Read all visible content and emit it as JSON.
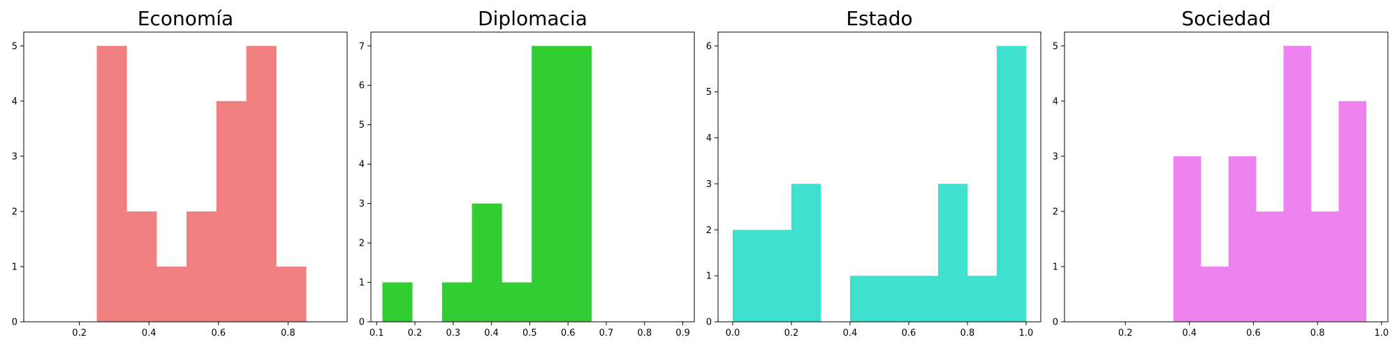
{
  "chart_data": [
    {
      "type": "bar",
      "title": "Economía",
      "color": "#F08080",
      "bins": [
        {
          "x0": 0.25,
          "x1": 0.336,
          "count": 5
        },
        {
          "x0": 0.336,
          "x1": 0.422,
          "count": 2
        },
        {
          "x0": 0.422,
          "x1": 0.508,
          "count": 1
        },
        {
          "x0": 0.508,
          "x1": 0.594,
          "count": 2
        },
        {
          "x0": 0.594,
          "x1": 0.68,
          "count": 4
        },
        {
          "x0": 0.68,
          "x1": 0.766,
          "count": 5
        },
        {
          "x0": 0.766,
          "x1": 0.852,
          "count": 1
        }
      ],
      "xlim": [
        0.04,
        0.97
      ],
      "ylim": [
        0,
        5.25
      ],
      "xticks": [
        0.2,
        0.4,
        0.6,
        0.8
      ],
      "xtick_labels": [
        "0.2",
        "0.4",
        "0.6",
        "0.8"
      ],
      "yticks": [
        0,
        1,
        2,
        3,
        4,
        5
      ],
      "ytick_labels": [
        "0",
        "1",
        "2",
        "3",
        "4",
        "5"
      ]
    },
    {
      "type": "bar",
      "title": "Diplomacia",
      "color": "#32CD32",
      "bins": [
        {
          "x0": 0.115,
          "x1": 0.193,
          "count": 1
        },
        {
          "x0": 0.193,
          "x1": 0.271,
          "count": 0
        },
        {
          "x0": 0.271,
          "x1": 0.349,
          "count": 1
        },
        {
          "x0": 0.349,
          "x1": 0.427,
          "count": 3
        },
        {
          "x0": 0.427,
          "x1": 0.505,
          "count": 1
        },
        {
          "x0": 0.505,
          "x1": 0.583,
          "count": 7
        },
        {
          "x0": 0.583,
          "x1": 0.661,
          "count": 7
        }
      ],
      "xlim": [
        0.085,
        0.93
      ],
      "ylim": [
        0,
        7.35
      ],
      "xticks": [
        0.1,
        0.2,
        0.3,
        0.4,
        0.5,
        0.6,
        0.7,
        0.8,
        0.9
      ],
      "xtick_labels": [
        "0.1",
        "0.2",
        "0.3",
        "0.4",
        "0.5",
        "0.6",
        "0.7",
        "0.8",
        "0.9"
      ],
      "yticks": [
        0,
        1,
        2,
        3,
        4,
        5,
        6,
        7
      ],
      "ytick_labels": [
        "0",
        "1",
        "2",
        "3",
        "4",
        "5",
        "6",
        "7"
      ]
    },
    {
      "type": "bar",
      "title": "Estado",
      "color": "#40E0D0",
      "bins": [
        {
          "x0": 0.0,
          "x1": 0.1,
          "count": 2
        },
        {
          "x0": 0.1,
          "x1": 0.2,
          "count": 2
        },
        {
          "x0": 0.2,
          "x1": 0.3,
          "count": 3
        },
        {
          "x0": 0.3,
          "x1": 0.4,
          "count": 0
        },
        {
          "x0": 0.4,
          "x1": 0.5,
          "count": 1
        },
        {
          "x0": 0.5,
          "x1": 0.6,
          "count": 1
        },
        {
          "x0": 0.6,
          "x1": 0.7,
          "count": 1
        },
        {
          "x0": 0.7,
          "x1": 0.8,
          "count": 3
        },
        {
          "x0": 0.8,
          "x1": 0.9,
          "count": 1
        },
        {
          "x0": 0.9,
          "x1": 1.0,
          "count": 6
        }
      ],
      "xlim": [
        -0.05,
        1.05
      ],
      "ylim": [
        0,
        6.3
      ],
      "xticks": [
        0.0,
        0.2,
        0.4,
        0.6,
        0.8,
        1.0
      ],
      "xtick_labels": [
        "0.0",
        "0.2",
        "0.4",
        "0.6",
        "0.8",
        "1.0"
      ],
      "yticks": [
        0,
        1,
        2,
        3,
        4,
        5,
        6
      ],
      "ytick_labels": [
        "0",
        "1",
        "2",
        "3",
        "4",
        "5",
        "6"
      ]
    },
    {
      "type": "bar",
      "title": "Sociedad",
      "color": "#EE82EE",
      "bins": [
        {
          "x0": 0.35,
          "x1": 0.436,
          "count": 3
        },
        {
          "x0": 0.436,
          "x1": 0.522,
          "count": 1
        },
        {
          "x0": 0.522,
          "x1": 0.608,
          "count": 3
        },
        {
          "x0": 0.608,
          "x1": 0.694,
          "count": 2
        },
        {
          "x0": 0.694,
          "x1": 0.78,
          "count": 5
        },
        {
          "x0": 0.78,
          "x1": 0.866,
          "count": 2
        },
        {
          "x0": 0.866,
          "x1": 0.952,
          "count": 4
        }
      ],
      "xlim": [
        0.01,
        1.02
      ],
      "ylim": [
        0,
        5.25
      ],
      "xticks": [
        0.2,
        0.4,
        0.6,
        0.8,
        1.0
      ],
      "xtick_labels": [
        "0.2",
        "0.4",
        "0.6",
        "0.8",
        "1.0"
      ],
      "yticks": [
        0,
        1,
        2,
        3,
        4,
        5
      ],
      "ytick_labels": [
        "0",
        "1",
        "2",
        "3",
        "4",
        "5"
      ]
    }
  ]
}
